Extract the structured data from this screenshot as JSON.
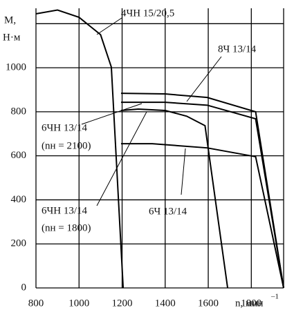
{
  "chart_data": {
    "type": "line",
    "y_label": [
      "М,",
      "Н·м"
    ],
    "x_label": "n, мин",
    "x_label_exp": "–1",
    "xlim": [
      800,
      1950
    ],
    "ylim": [
      0,
      1270
    ],
    "xticks": [
      800,
      1000,
      1200,
      1400,
      1600,
      1800
    ],
    "yticks": [
      0,
      200,
      400,
      600,
      800,
      1000
    ],
    "y_grid_extra": [
      1200
    ],
    "grid": true,
    "color": "#000000",
    "series": [
      {
        "name": "4ЧН 15/20,5",
        "x": [
          800,
          900,
          1000,
          1100,
          1150,
          1205
        ],
        "values": [
          1245,
          1262,
          1229,
          1150,
          1003,
          0
        ]
      },
      {
        "name": "8Ч 13/14",
        "x": [
          1195,
          1400,
          1595,
          1820,
          1950
        ],
        "values": [
          884,
          881,
          865,
          800,
          0
        ]
      },
      {
        "name": "6ЧН 13/14 (nн = 2100)",
        "x": [
          1195,
          1400,
          1595,
          1820,
          1950
        ],
        "values": [
          843,
          843,
          830,
          768,
          0
        ]
      },
      {
        "name": "6ЧН 13/14 (nн = 1800)",
        "x": [
          1195,
          1275,
          1400,
          1500,
          1585,
          1690
        ],
        "values": [
          806,
          812,
          806,
          780,
          737,
          0
        ]
      },
      {
        "name": "6Ч 13/14",
        "x": [
          1195,
          1340,
          1595,
          1820,
          1950
        ],
        "values": [
          655,
          655,
          636,
          596,
          0
        ]
      }
    ],
    "annotations": [
      "4ЧН 15/20,5",
      "8Ч 13/14",
      "6ЧН 13/14",
      "(nн = 2100)",
      "6ЧН 13/14",
      "(nн = 1800)",
      "6Ч 13/14"
    ]
  }
}
